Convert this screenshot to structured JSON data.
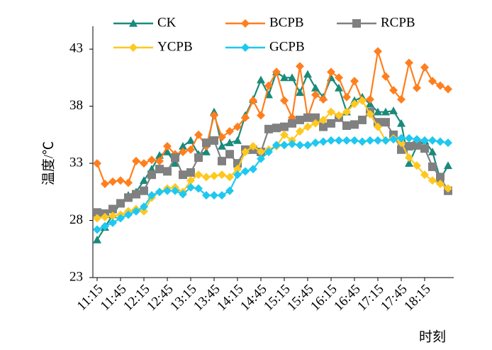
{
  "chart_data": {
    "type": "line",
    "y_label": "温度/℃",
    "x_label": "时刻",
    "categories": [
      "11:15",
      null,
      null,
      "11:45",
      null,
      null,
      "12:15",
      null,
      null,
      "12:45",
      null,
      null,
      "13:15",
      null,
      null,
      "13:45",
      null,
      null,
      "14:15",
      null,
      null,
      "14:45",
      null,
      null,
      "15:15",
      null,
      null,
      "15:45",
      null,
      null,
      "16:15",
      null,
      null,
      "16:45",
      null,
      null,
      "17:15",
      null,
      null,
      "17:45",
      null,
      null,
      "18:15",
      null,
      null,
      null
    ],
    "series": [
      {
        "name": "CK",
        "color": "#1a8a7a",
        "marker": "triangle",
        "values": [
          26.3,
          27.4,
          28.5,
          29.5,
          30.2,
          30.5,
          31.5,
          32.5,
          33.7,
          34.0,
          33.0,
          34.5,
          35.0,
          33.8,
          34.0,
          37.5,
          34.5,
          34.8,
          35.0,
          37.2,
          38.6,
          40.3,
          39.0,
          41.0,
          40.5,
          40.5,
          39.2,
          40.8,
          39.6,
          38.8,
          40.5,
          39.6,
          37.5,
          38.5,
          38.8,
          38.2,
          37.5,
          37.5,
          37.6,
          36.5,
          33.0,
          34.5,
          35.0,
          34.0,
          31.6,
          32.8
        ]
      },
      {
        "name": "BCPB",
        "color": "#ff7f1e",
        "marker": "diamond",
        "values": [
          33.0,
          31.2,
          31.4,
          31.5,
          31.3,
          33.2,
          33.0,
          33.3,
          33.2,
          34.5,
          33.8,
          34.0,
          34.2,
          35.5,
          34.5,
          37.2,
          35.3,
          35.8,
          36.2,
          37.0,
          38.5,
          37.2,
          39.8,
          41.0,
          38.5,
          37.0,
          41.5,
          37.0,
          39.0,
          38.6,
          41.0,
          40.5,
          38.8,
          40.2,
          38.5,
          38.6,
          42.8,
          40.6,
          39.4,
          38.6,
          41.8,
          39.6,
          41.4,
          40.2,
          39.8,
          39.5
        ]
      },
      {
        "name": "RCPB",
        "color": "#808080",
        "marker": "square",
        "values": [
          28.7,
          28.6,
          29.0,
          29.5,
          30.0,
          30.3,
          30.6,
          32.0,
          32.5,
          32.3,
          33.5,
          32.0,
          32.2,
          33.5,
          34.8,
          35.0,
          33.2,
          33.8,
          33.0,
          34.2,
          34.2,
          34.0,
          36.0,
          36.1,
          36.2,
          36.5,
          36.8,
          37.0,
          37.0,
          36.2,
          36.5,
          37.0,
          36.3,
          36.4,
          36.8,
          37.5,
          36.6,
          36.6,
          35.5,
          34.2,
          34.5,
          34.6,
          34.3,
          32.7,
          31.8,
          30.6
        ]
      },
      {
        "name": "YCPB",
        "color": "#ffc820",
        "marker": "diamond",
        "values": [
          28.2,
          28.3,
          28.4,
          28.5,
          28.8,
          29.0,
          28.8,
          30.0,
          30.5,
          30.8,
          30.9,
          30.5,
          31.5,
          32.0,
          31.8,
          31.9,
          32.0,
          31.8,
          32.5,
          34.0,
          34.5,
          34.0,
          34.2,
          34.5,
          35.5,
          35.0,
          35.8,
          36.2,
          36.5,
          36.8,
          37.5,
          37.2,
          37.5,
          38.2,
          38.5,
          37.3,
          36.2,
          35.0,
          35.2,
          34.8,
          33.5,
          32.8,
          32.0,
          31.5,
          31.2,
          30.8
        ]
      },
      {
        "name": "GCPB",
        "color": "#1ec8f0",
        "marker": "diamond",
        "values": [
          27.2,
          27.5,
          27.8,
          28.2,
          28.5,
          28.8,
          29.2,
          30.2,
          30.5,
          30.6,
          30.6,
          30.3,
          30.9,
          30.8,
          30.2,
          30.2,
          30.2,
          30.6,
          32.0,
          32.3,
          32.5,
          33.4,
          34.0,
          34.6,
          34.6,
          34.7,
          34.6,
          34.6,
          34.8,
          34.9,
          35.0,
          35.0,
          35.0,
          35.0,
          34.9,
          35.0,
          35.0,
          35.0,
          35.1,
          35.2,
          35.2,
          35.1,
          35.0,
          35.0,
          34.9,
          34.8
        ]
      }
    ],
    "ylim": [
      23,
      45
    ],
    "yticks": [
      23,
      28,
      33,
      38,
      43
    ],
    "grid": false,
    "legend": "top"
  }
}
